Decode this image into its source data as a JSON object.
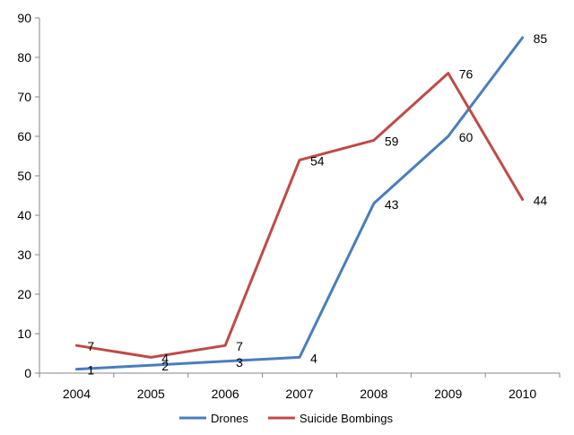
{
  "chart_data": {
    "type": "line",
    "categories": [
      "2004",
      "2005",
      "2006",
      "2007",
      "2008",
      "2009",
      "2010"
    ],
    "series": [
      {
        "name": "Drones",
        "color": "#4a7ebb",
        "values": [
          1,
          2,
          3,
          4,
          43,
          60,
          85
        ]
      },
      {
        "name": "Suicide Bombings",
        "color": "#be4b48",
        "values": [
          7,
          4,
          7,
          54,
          59,
          76,
          44
        ]
      }
    ],
    "yticks": [
      0,
      10,
      20,
      30,
      40,
      50,
      60,
      70,
      80,
      90
    ],
    "ylim": [
      0,
      90
    ],
    "grid": false,
    "legend_position": "bottom",
    "title": "",
    "xlabel": "",
    "ylabel": ""
  }
}
